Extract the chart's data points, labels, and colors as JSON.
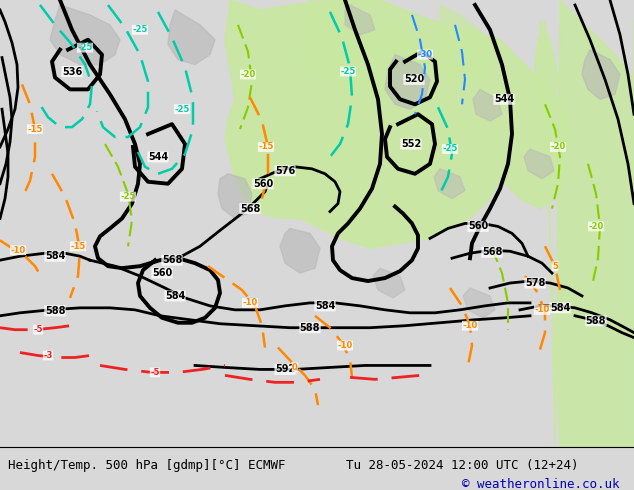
{
  "title_left": "Height/Temp. 500 hPa [gdmp][°C] ECMWF",
  "title_right": "Tu 28-05-2024 12:00 UTC (12+24)",
  "copyright": "© weatheronline.co.uk",
  "bg_color": "#d8d8d8",
  "ocean_color": "#d8d8d8",
  "land_green": "#c8e8a0",
  "land_gray": "#b8b8b8",
  "bottom_text_color": "#000000",
  "copyright_color": "#0000bb",
  "font_size_bottom": 9,
  "fig_width": 6.34,
  "fig_height": 4.9,
  "dpi": 100
}
